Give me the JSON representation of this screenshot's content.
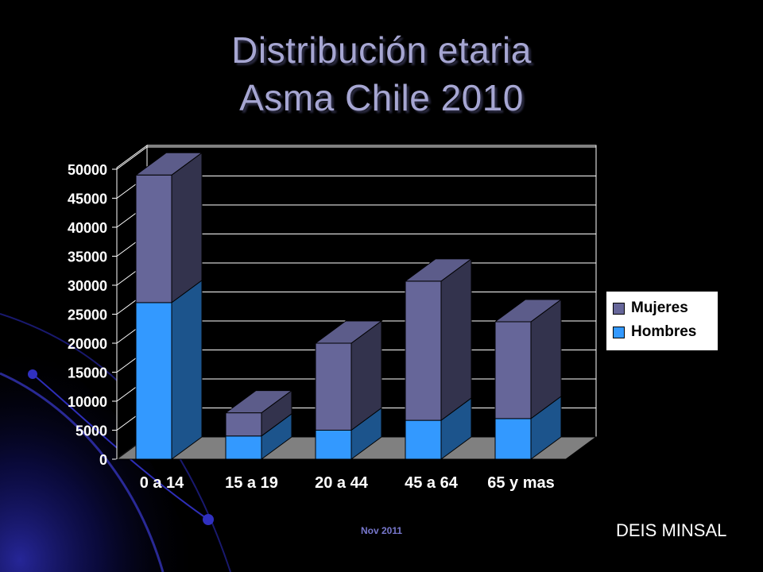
{
  "slide": {
    "title_line1": "Distribución etaria",
    "title_line2": "Asma Chile 2010",
    "footer_date": "Nov 2011",
    "footer_source": "DEIS MINSAL"
  },
  "chart_data": {
    "type": "bar",
    "stacked": true,
    "style": "3d",
    "categories": [
      "0 a 14",
      "15 a 19",
      "20 a 44",
      "45 a 64",
      "65 y mas"
    ],
    "series": [
      {
        "name": "Hombres",
        "values": [
          27000,
          4000,
          5000,
          6700,
          7000
        ],
        "color": "#3399ff"
      },
      {
        "name": "Mujeres",
        "values": [
          22000,
          4000,
          15000,
          24000,
          16700
        ],
        "color": "#666699"
      }
    ],
    "ylim": [
      0,
      50000
    ],
    "yticks": [
      "0",
      "5000",
      "10000",
      "15000",
      "20000",
      "25000",
      "30000",
      "35000",
      "40000",
      "45000",
      "50000"
    ],
    "grid": true,
    "legend_position": "right"
  },
  "colors": {
    "background": "#000000",
    "title": "#a6a6d2",
    "floor": "#808080",
    "plot_wall": "#000000"
  }
}
